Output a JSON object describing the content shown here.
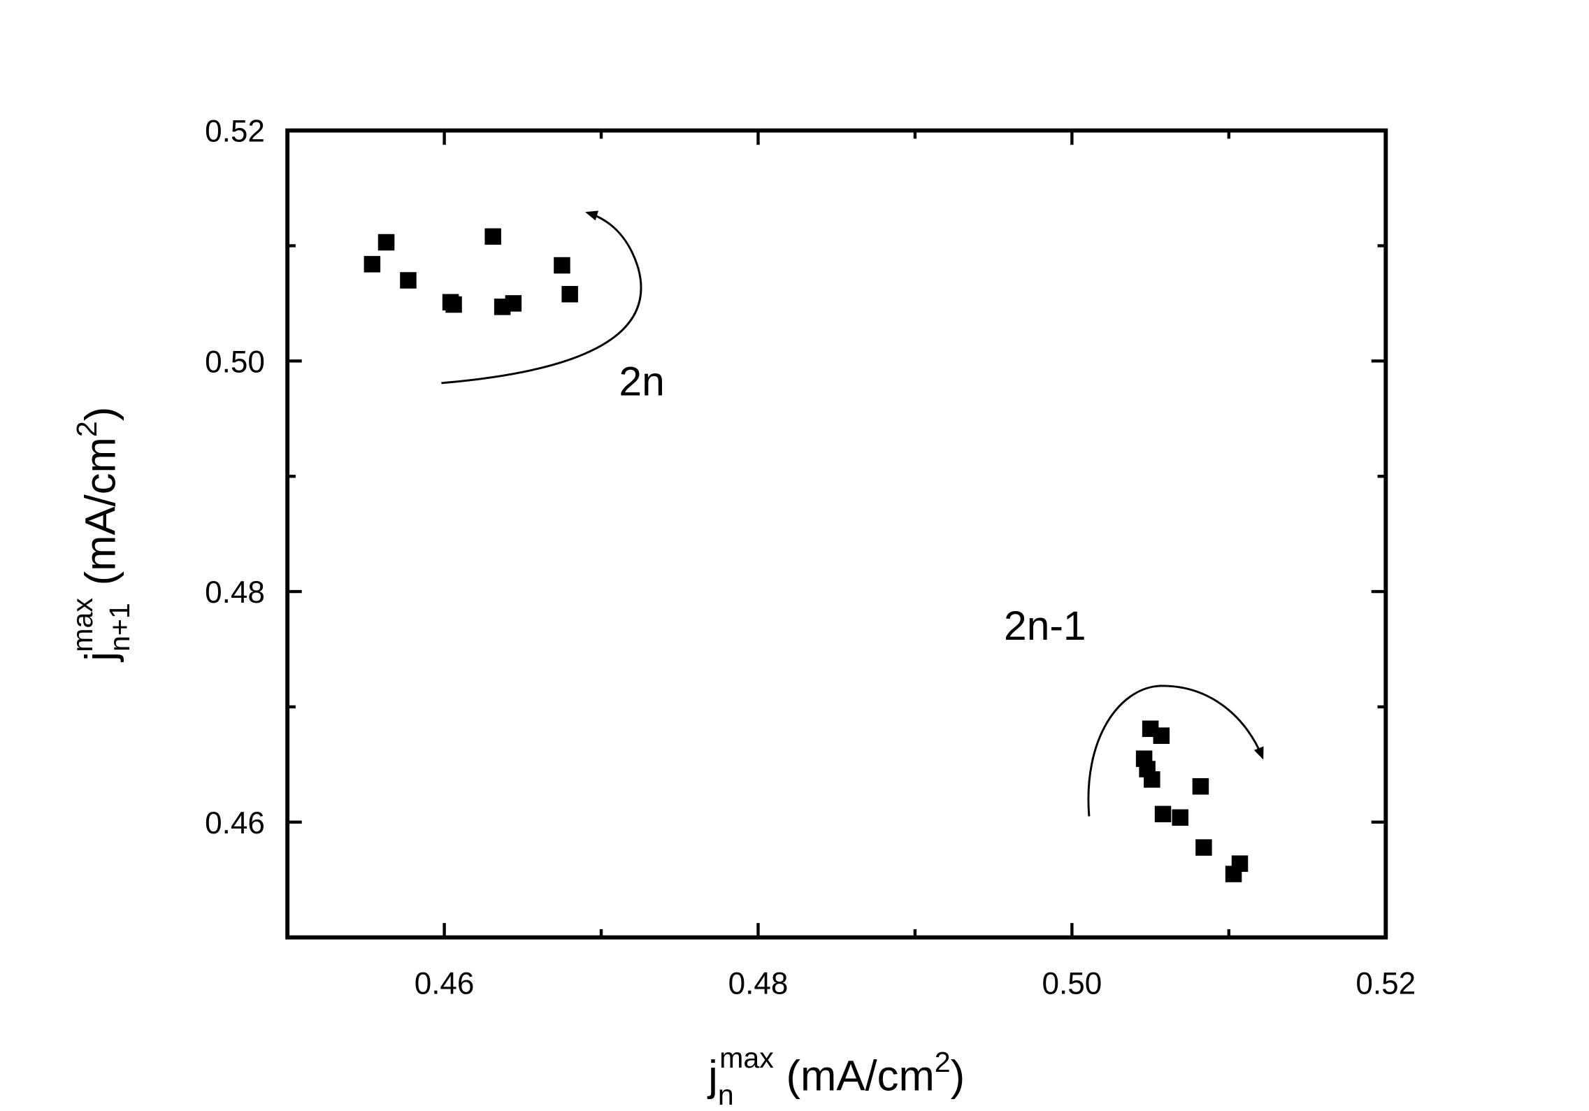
{
  "chart_data": {
    "type": "scatter",
    "x_label": {
      "base": "j",
      "sub": "n",
      "sup": "max",
      "unit": "(mA/cm",
      "unit_sup": "2",
      "close": ")"
    },
    "y_label": {
      "base": "j",
      "sub": "n+1",
      "sup": "max",
      "unit": "(mA/cm",
      "unit_sup": "2",
      "close": ")"
    },
    "annotations": [
      "2n",
      "2n-1"
    ],
    "xlim": [
      0.45,
      0.52
    ],
    "ylim": [
      0.45,
      0.52
    ],
    "xticks": [
      0.46,
      0.48,
      {
        "value": 0.5,
        "label": "0.50"
      },
      0.52
    ],
    "yticks": [
      {
        "value": 0.46,
        "label": "0.46"
      },
      0.48,
      {
        "value": 0.5,
        "label": "0.50"
      },
      0.52
    ],
    "xminor": [
      0.47,
      0.49,
      0.51
    ],
    "yminor": [
      0.47,
      0.49,
      0.51
    ],
    "series": [
      {
        "color": "#000000",
        "x": [
          0.4554,
          0.4563,
          0.4577,
          0.4604,
          0.4606,
          0.4631,
          0.4637,
          0.4644,
          0.4675,
          0.468,
          0.505,
          0.5057,
          0.5046,
          0.5048,
          0.5051,
          0.5058,
          0.5069,
          0.5082,
          0.5084,
          0.5107,
          0.5103
        ],
        "values": [
          0.5084,
          0.5103,
          0.507,
          0.5051,
          0.5049,
          0.5108,
          0.5047,
          0.505,
          0.5083,
          0.5058,
          0.4681,
          0.4675,
          0.4655,
          0.4646,
          0.4637,
          0.4607,
          0.4604,
          0.4631,
          0.4578,
          0.4564,
          0.4555
        ]
      }
    ]
  }
}
